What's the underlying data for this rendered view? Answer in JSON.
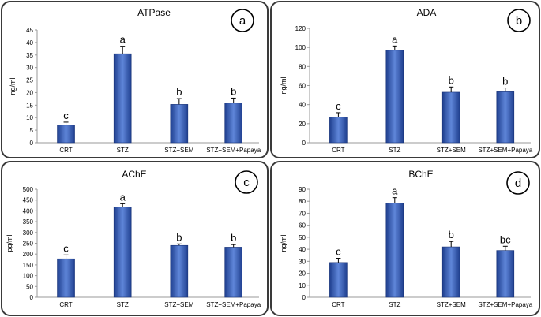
{
  "chart_data": [
    {
      "type": "bar",
      "panel_label": "a",
      "title": "ATPase",
      "ylabel": "ng/ml",
      "categories": [
        "CRT",
        "STZ",
        "STZ+SEM",
        "STZ+SEM+Papaya"
      ],
      "values": [
        7,
        35.5,
        15.3,
        15.8
      ],
      "errors": [
        1.2,
        3.0,
        2.3,
        2.0
      ],
      "letters": [
        "c",
        "a",
        "b",
        "b"
      ],
      "ylim": [
        0,
        45
      ],
      "yticks": [
        "0",
        "5",
        "10",
        "15",
        "20",
        "25",
        "30",
        "35",
        "40",
        "45"
      ]
    },
    {
      "type": "bar",
      "panel_label": "b",
      "title": "ADA",
      "ylabel": "ng/ml",
      "categories": [
        "CRT",
        "STZ",
        "STZ+SEM",
        "STZ+SEM+Papaya"
      ],
      "values": [
        27,
        97,
        53,
        53.5
      ],
      "errors": [
        4.5,
        4.5,
        5.5,
        4.0
      ],
      "letters": [
        "c",
        "a",
        "b",
        "b"
      ],
      "ylim": [
        0,
        120
      ],
      "yticks": [
        "0",
        "20",
        "40",
        "60",
        "80",
        "100",
        "120"
      ]
    },
    {
      "type": "bar",
      "panel_label": "c",
      "title": "AChE",
      "ylabel": "pg/ml",
      "categories": [
        "CRT",
        "STZ",
        "STZ+SEM",
        "STZ+SEM+Papaya"
      ],
      "values": [
        178,
        418,
        240,
        232
      ],
      "errors": [
        18,
        15,
        7,
        12
      ],
      "letters": [
        "c",
        "a",
        "b",
        "b"
      ],
      "ylim": [
        0,
        500
      ],
      "yticks": [
        "0",
        "50",
        "100",
        "150",
        "200",
        "250",
        "300",
        "350",
        "400",
        "450",
        "500"
      ]
    },
    {
      "type": "bar",
      "panel_label": "d",
      "title": "BChE",
      "ylabel": "ng/ml",
      "categories": [
        "CRT",
        "STZ",
        "STZ+SEM",
        "STZ+SEM+Papaya"
      ],
      "values": [
        29,
        78.5,
        42,
        39
      ],
      "errors": [
        3.5,
        4.5,
        4.5,
        3.5
      ],
      "letters": [
        "c",
        "a",
        "b",
        "bc"
      ],
      "ylim": [
        0,
        90
      ],
      "yticks": [
        "0",
        "10",
        "20",
        "30",
        "40",
        "50",
        "60",
        "70",
        "80",
        "90"
      ]
    }
  ],
  "colors": {
    "bar_dark": "#1f3f8f",
    "bar_light": "#5f86d9",
    "axis": "#9a9a9a",
    "frame": "#3a3a3a"
  }
}
